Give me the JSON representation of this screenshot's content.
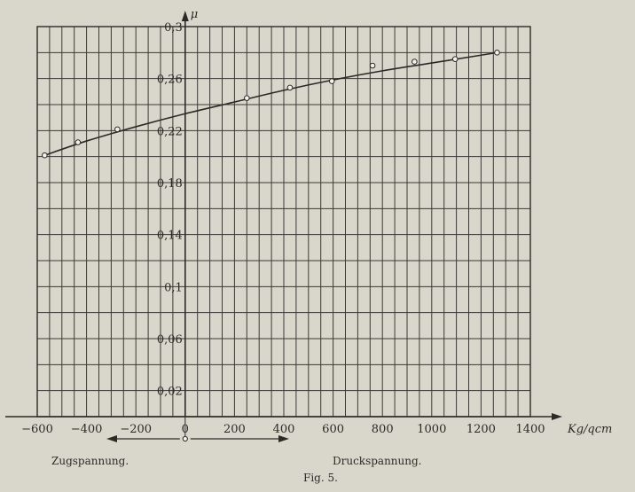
{
  "figure_caption": "Fig. 5.",
  "left_label": "Zugspannung.",
  "right_label": "Druckspannung.",
  "chart_data": {
    "type": "line",
    "title": "",
    "xlabel": "Kg/qcm",
    "ylabel": "μ",
    "xlim": [
      -600,
      1400
    ],
    "ylim": [
      0,
      0.3
    ],
    "x_ticks": [
      -600,
      -400,
      -200,
      0,
      200,
      400,
      600,
      800,
      1000,
      1200,
      1400
    ],
    "x_tick_labels": [
      "−600",
      "−400",
      "−200",
      "0",
      "200",
      "400",
      "600",
      "800",
      "1000",
      "1200",
      "1400"
    ],
    "y_ticks": [
      0.02,
      0.06,
      0.1,
      0.14,
      0.18,
      0.22,
      0.26,
      0.3
    ],
    "y_tick_labels": [
      "0,02",
      "0,06",
      "0,1",
      "0,14",
      "0,18",
      "0,22",
      "0,26",
      "0,3"
    ],
    "grid": true,
    "series": [
      {
        "style": "points",
        "x": [
          -570,
          -435,
          -275,
          250,
          425,
          595,
          760,
          930,
          1095,
          1265
        ],
        "y": [
          0.201,
          0.211,
          0.221,
          0.245,
          0.253,
          0.258,
          0.27,
          0.273,
          0.275,
          0.28
        ]
      },
      {
        "style": "curve",
        "x": [
          -570,
          -400,
          -200,
          0,
          200,
          400,
          600,
          800,
          1000,
          1200,
          1265
        ],
        "y": [
          0.201,
          0.212,
          0.223,
          0.233,
          0.242,
          0.251,
          0.259,
          0.266,
          0.272,
          0.278,
          0.28
        ]
      }
    ]
  }
}
